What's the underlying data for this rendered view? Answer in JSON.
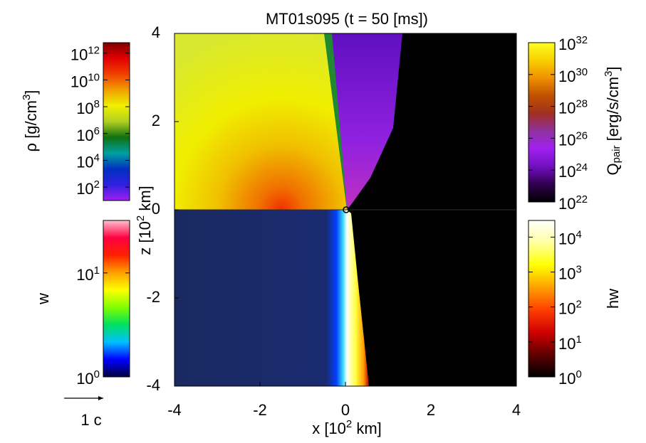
{
  "chart_data": {
    "type": "heatmap",
    "title": "MT01s095 (t = 50 [ms])",
    "xlabel": "x [10^2 km]",
    "ylabel": "z [10^2 km]",
    "xlim": [
      -4,
      4
    ],
    "ylim": [
      -4,
      4
    ],
    "xticks": [
      -4,
      -2,
      0,
      2,
      4
    ],
    "yticks": [
      -4,
      -2,
      0,
      2,
      4
    ],
    "vector_label": "1 c",
    "colorbars": [
      {
        "label": "ρ [g/cm^3]",
        "scale": "log",
        "lim": [
          10,
          6000000000000.0
        ],
        "ticks": [
          {
            "value": 1000000000000.0,
            "label": "10^12"
          },
          {
            "value": 10000000000.0,
            "label": "10^10"
          },
          {
            "value": 100000000.0,
            "label": "10^8"
          },
          {
            "value": 1000000.0,
            "label": "10^6"
          },
          {
            "value": 10000.0,
            "label": "10^4"
          },
          {
            "value": 100,
            "label": "10^2"
          }
        ],
        "colors": [
          "#a020f0",
          "#3020e0",
          "#0030c0",
          "#00a0a0",
          "#107010",
          "#b0d020",
          "#f0f000",
          "#f0a000",
          "#f04000",
          "#e00000",
          "#800000"
        ]
      },
      {
        "label": "Q_pair [erg/s/cm^3]",
        "scale": "log",
        "lim": [
          1e+22,
          1e+32
        ],
        "ticks": [
          {
            "value": 1e+32,
            "label": "10^32"
          },
          {
            "value": 1e+30,
            "label": "10^30"
          },
          {
            "value": 1e+28,
            "label": "10^28"
          },
          {
            "value": 1e+26,
            "label": "10^26"
          },
          {
            "value": 1e+24,
            "label": "10^24"
          },
          {
            "value": 1e+22,
            "label": "10^22"
          }
        ],
        "colors": [
          "#000000",
          "#300050",
          "#7010c0",
          "#a020f0",
          "#9030a0",
          "#a03020",
          "#c05000",
          "#f09000",
          "#f8d000",
          "#ffff20"
        ]
      },
      {
        "label": "w",
        "scale": "log",
        "lim": [
          1,
          32
        ],
        "ticks": [
          {
            "value": 10,
            "label": "10^1"
          },
          {
            "value": 1,
            "label": "10^0"
          }
        ],
        "colors": [
          "#000040",
          "#0000ff",
          "#00c0ff",
          "#00e060",
          "#80ff00",
          "#ffff00",
          "#ffa000",
          "#ff2000",
          "#ff0040",
          "#ffc0d0"
        ]
      },
      {
        "label": "hw",
        "scale": "log",
        "lim": [
          1,
          30000.0
        ],
        "ticks": [
          {
            "value": 10000,
            "label": "10^4"
          },
          {
            "value": 1000,
            "label": "10^3"
          },
          {
            "value": 100,
            "label": "10^2"
          },
          {
            "value": 10,
            "label": "10^1"
          },
          {
            "value": 1,
            "label": "10^0"
          }
        ],
        "colors": [
          "#000000",
          "#600000",
          "#d00000",
          "#ff4000",
          "#ffa000",
          "#ffff00",
          "#ffffa0",
          "#ffffff"
        ]
      }
    ]
  }
}
